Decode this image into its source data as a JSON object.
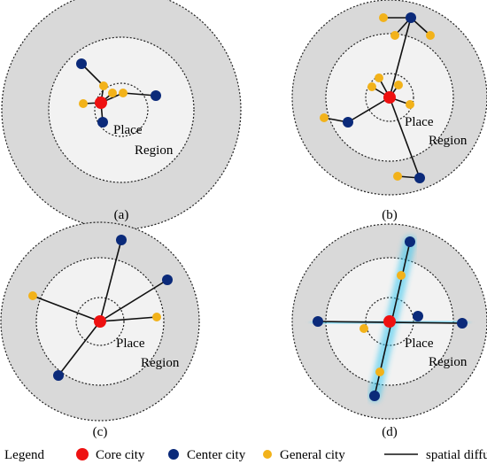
{
  "colors": {
    "outer_ring": "#d9d9d9",
    "inner_area": "#f2f2f2",
    "ring_stroke": "#222222",
    "core": "#ee1111",
    "center": "#0b2a7a",
    "general": "#f2b21a",
    "line": "#111111",
    "glow": "#33c6f0"
  },
  "panels": [
    {
      "id": "a",
      "caption": "(a)",
      "place_label": "Place",
      "region_label": "Region",
      "highlight": false,
      "lines": [
        [
          0,
          1
        ],
        [
          1,
          2
        ],
        [
          0,
          3
        ],
        [
          3,
          4
        ],
        [
          0,
          5
        ],
        [
          0,
          6
        ],
        [
          0,
          7
        ]
      ],
      "nodes": [
        {
          "type": "core"
        },
        {
          "type": "general"
        },
        {
          "type": "center"
        },
        {
          "type": "general"
        },
        {
          "type": "center"
        },
        {
          "type": "general"
        },
        {
          "type": "general"
        },
        {
          "type": "center"
        }
      ]
    },
    {
      "id": "b",
      "caption": "(b)",
      "place_label": "Place",
      "region_label": "Region",
      "highlight": false,
      "lines": [
        [
          0,
          1
        ],
        [
          0,
          2
        ],
        [
          0,
          3
        ],
        [
          0,
          4
        ],
        [
          0,
          5
        ],
        [
          5,
          6
        ],
        [
          5,
          7
        ],
        [
          5,
          8
        ],
        [
          0,
          9
        ],
        [
          9,
          10
        ],
        [
          0,
          11
        ],
        [
          11,
          12
        ]
      ],
      "nodes": [
        {
          "type": "core"
        },
        {
          "type": "general"
        },
        {
          "type": "general"
        },
        {
          "type": "general"
        },
        {
          "type": "general"
        },
        {
          "type": "center"
        },
        {
          "type": "general"
        },
        {
          "type": "general"
        },
        {
          "type": "general"
        },
        {
          "type": "center"
        },
        {
          "type": "general"
        },
        {
          "type": "center"
        },
        {
          "type": "general"
        }
      ]
    },
    {
      "id": "c",
      "caption": "(c)",
      "place_label": "Place",
      "region_label": "Region",
      "highlight": false,
      "lines": [
        [
          0,
          1
        ],
        [
          0,
          2
        ],
        [
          0,
          3
        ],
        [
          0,
          4
        ],
        [
          0,
          5
        ]
      ],
      "nodes": [
        {
          "type": "core"
        },
        {
          "type": "center"
        },
        {
          "type": "center"
        },
        {
          "type": "general"
        },
        {
          "type": "general"
        },
        {
          "type": "center"
        }
      ]
    },
    {
      "id": "d",
      "caption": "(d)",
      "place_label": "Place",
      "region_label": "Region",
      "highlight": true,
      "lines": [
        [
          1,
          2
        ],
        [
          3,
          4
        ]
      ],
      "nodes": [
        {
          "type": "core"
        },
        {
          "type": "center"
        },
        {
          "type": "center"
        },
        {
          "type": "center"
        },
        {
          "type": "center"
        },
        {
          "type": "general"
        },
        {
          "type": "general"
        },
        {
          "type": "center"
        },
        {
          "type": "general"
        }
      ]
    }
  ],
  "legend": {
    "title": "Legend",
    "items": [
      {
        "kind": "core",
        "label": "Core city"
      },
      {
        "kind": "center",
        "label": "Center city"
      },
      {
        "kind": "general",
        "label": "General city"
      },
      {
        "kind": "line",
        "label": "spatial diffusion"
      }
    ]
  }
}
